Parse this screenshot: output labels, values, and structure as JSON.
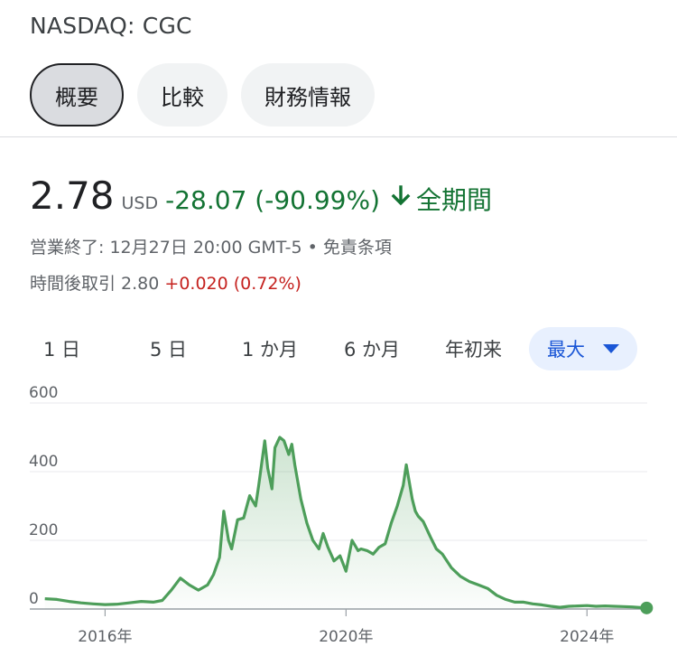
{
  "ticker": "NASDAQ: CGC",
  "tabs": [
    {
      "label": "概要",
      "active": true
    },
    {
      "label": "比較",
      "active": false
    },
    {
      "label": "財務情報",
      "active": false
    }
  ],
  "quote": {
    "price": "2.78",
    "currency": "USD",
    "change": "-28.07 (-90.99%)",
    "period": "全期間",
    "closed_text": "営業終了: 12月27日 20:00 GMT-5 • 免責条項",
    "after_hours_label": "時間後取引 2.80",
    "after_hours_change": "+0.020 (0.72%)"
  },
  "ranges": [
    {
      "label": "1 日",
      "active": false
    },
    {
      "label": "5 日",
      "active": false
    },
    {
      "label": "1 か月",
      "active": false
    },
    {
      "label": "6 か月",
      "active": false
    },
    {
      "label": "年初来",
      "active": false
    },
    {
      "label": "最大",
      "active": true
    }
  ],
  "colors": {
    "line": "#4d9e5a",
    "positive": "#137333",
    "negative": "#c5221f",
    "accent": "#1a56d6"
  },
  "chart_data": {
    "type": "area",
    "title": "",
    "xlabel": "",
    "ylabel": "",
    "ylim": [
      0,
      600
    ],
    "yticks": [
      "600",
      "400",
      "200",
      "0"
    ],
    "yticks_values": [
      600,
      400,
      200,
      0
    ],
    "xticks": [
      "2016年",
      "2020年",
      "2024年"
    ],
    "xticks_values": [
      2016,
      2020,
      2024
    ],
    "xlim": [
      2014.75,
      2025.0
    ],
    "grid": true,
    "series": [
      {
        "x": [
          2015.0,
          2015.2,
          2015.4,
          2015.6,
          2015.8,
          2016.0,
          2016.2,
          2016.4,
          2016.6,
          2016.8,
          2016.95,
          2017.1,
          2017.25,
          2017.4,
          2017.55,
          2017.7,
          2017.8,
          2017.9,
          2017.97,
          2018.05,
          2018.1,
          2018.2,
          2018.3,
          2018.4,
          2018.5,
          2018.55,
          2018.65,
          2018.7,
          2018.77,
          2018.82,
          2018.9,
          2018.97,
          2019.05,
          2019.1,
          2019.15,
          2019.25,
          2019.35,
          2019.45,
          2019.55,
          2019.62,
          2019.7,
          2019.8,
          2019.9,
          2020.0,
          2020.1,
          2020.2,
          2020.25,
          2020.35,
          2020.45,
          2020.55,
          2020.65,
          2020.75,
          2020.85,
          2020.95,
          2021.0,
          2021.05,
          2021.1,
          2021.15,
          2021.2,
          2021.28,
          2021.4,
          2021.5,
          2021.6,
          2021.75,
          2021.9,
          2022.05,
          2022.2,
          2022.35,
          2022.5,
          2022.65,
          2022.8,
          2022.95,
          2023.1,
          2023.25,
          2023.4,
          2023.55,
          2023.7,
          2023.85,
          2024.0,
          2024.15,
          2024.3,
          2024.45,
          2024.6,
          2024.75,
          2024.99
        ],
        "values": [
          30,
          28,
          22,
          18,
          15,
          13,
          14,
          18,
          22,
          20,
          25,
          55,
          90,
          70,
          55,
          70,
          100,
          150,
          285,
          200,
          175,
          260,
          265,
          330,
          300,
          360,
          490,
          410,
          350,
          470,
          500,
          490,
          450,
          480,
          420,
          320,
          250,
          200,
          175,
          220,
          180,
          140,
          155,
          110,
          200,
          170,
          175,
          170,
          160,
          180,
          190,
          250,
          300,
          360,
          420,
          370,
          320,
          285,
          270,
          255,
          210,
          175,
          160,
          120,
          95,
          80,
          70,
          60,
          40,
          28,
          20,
          20,
          15,
          12,
          8,
          5,
          8,
          9,
          10,
          8,
          9,
          8,
          7,
          6,
          3
        ]
      }
    ]
  }
}
